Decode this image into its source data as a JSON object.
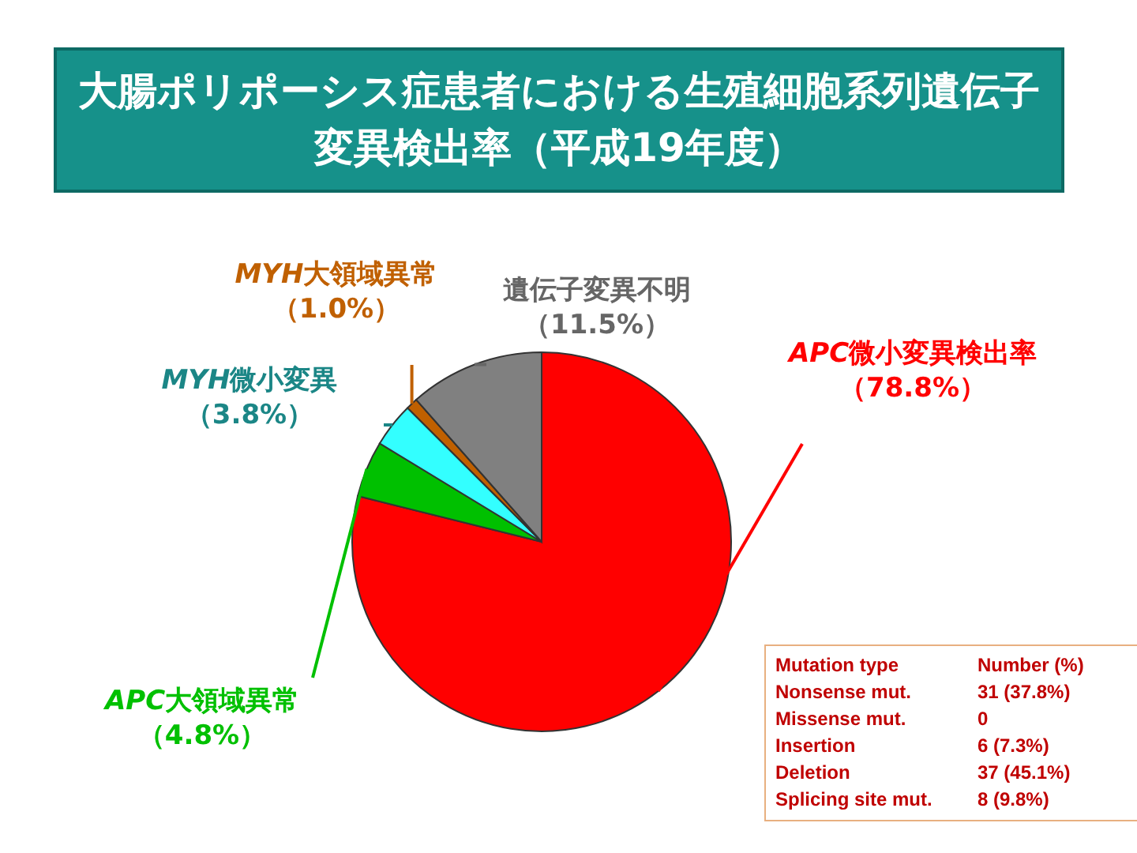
{
  "chart_data": {
    "type": "pie",
    "title": "大腸ポリポーシス症患者における生殖細胞系列遺伝子変異検出率（平成19年度）",
    "categories": [
      "APC微小変異検出率",
      "APC大領域異常",
      "MYH微小変異",
      "MYH大領域異常",
      "遺伝子変異不明"
    ],
    "values": [
      78.8,
      4.8,
      3.8,
      1.0,
      11.5
    ],
    "value_labels": [
      "（78.8%）",
      "（4.8%）",
      "（3.8%）",
      "（1.0%）",
      "（11.5%）"
    ],
    "colors": [
      "#ff0000",
      "#00c000",
      "#33ffff",
      "#c06000",
      "#808080"
    ],
    "annotations": [
      "Mutation type",
      "Number (%)",
      "Nonsense mut.",
      "31 (37.8%)",
      "Missense mut.",
      "0",
      "Insertion",
      "6 (7.3%)",
      "Deletion",
      "37 (45.1%)",
      "Splicing site mut.",
      "8 (9.8%)"
    ]
  }
}
